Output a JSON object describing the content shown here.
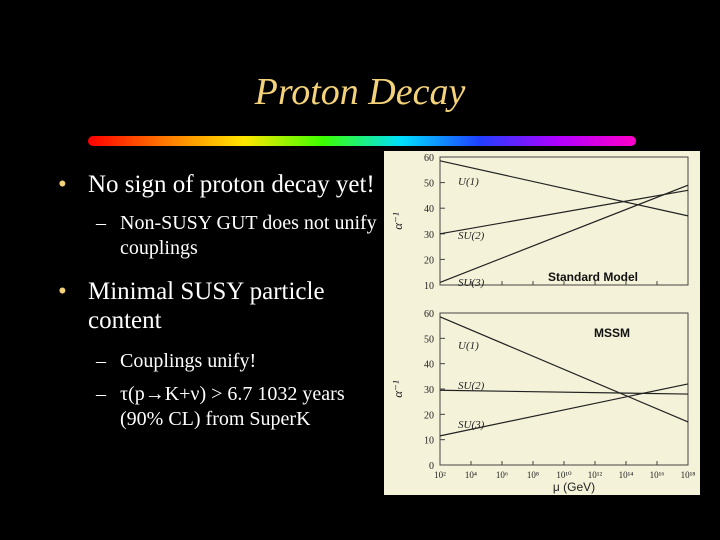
{
  "slide": {
    "title": "Proton Decay",
    "bullets": [
      {
        "text": "No sign of proton decay yet!",
        "sub": [
          "Non-SUSY GUT does not unify couplings"
        ]
      },
      {
        "text": "Minimal SUSY particle content",
        "sub": [
          "Couplings unify!",
          "τ(p→K+ν) > 6.7 1032 years (90% CL) from SuperK"
        ]
      }
    ]
  },
  "figure": {
    "y_axis_label": "α⁻¹",
    "x_axis_label": "μ (GeV)",
    "curve_labels": [
      "U(1)",
      "SU(2)",
      "SU(3)"
    ],
    "top_y_ticks": [
      "60",
      "50",
      "40",
      "30",
      "20",
      "10"
    ],
    "bottom_y_ticks": [
      "60",
      "50",
      "40",
      "30",
      "20",
      "10",
      "0"
    ],
    "x_ticks": [
      "10²",
      "10⁴",
      "10⁶",
      "10⁸",
      "10¹⁰",
      "10¹²",
      "10¹⁴",
      "10¹⁶",
      "10¹⁸"
    ]
  },
  "chart_data": [
    {
      "type": "line",
      "title": "Standard Model",
      "xlabel": "μ (GeV)",
      "ylabel": "α⁻¹",
      "x_scale": "log",
      "xlim": [
        100,
        1e+18
      ],
      "ylim": [
        10,
        60
      ],
      "series": [
        {
          "name": "U(1)",
          "x": [
            100,
            1e+18
          ],
          "y": [
            58.5,
            37
          ]
        },
        {
          "name": "SU(2)",
          "x": [
            100,
            1e+18
          ],
          "y": [
            30,
            47
          ]
        },
        {
          "name": "SU(3)",
          "x": [
            100,
            1e+18
          ],
          "y": [
            11,
            49
          ]
        }
      ]
    },
    {
      "type": "line",
      "title": "MSSM",
      "xlabel": "μ (GeV)",
      "ylabel": "α⁻¹",
      "x_scale": "log",
      "xlim": [
        100,
        1e+18
      ],
      "ylim": [
        0,
        60
      ],
      "series": [
        {
          "name": "U(1)",
          "x": [
            100,
            1e+18
          ],
          "y": [
            58.5,
            17
          ]
        },
        {
          "name": "SU(2)",
          "x": [
            100,
            1e+18
          ],
          "y": [
            29.5,
            28
          ]
        },
        {
          "name": "SU(3)",
          "x": [
            100,
            1e+18
          ],
          "y": [
            11.5,
            32
          ]
        }
      ]
    }
  ]
}
